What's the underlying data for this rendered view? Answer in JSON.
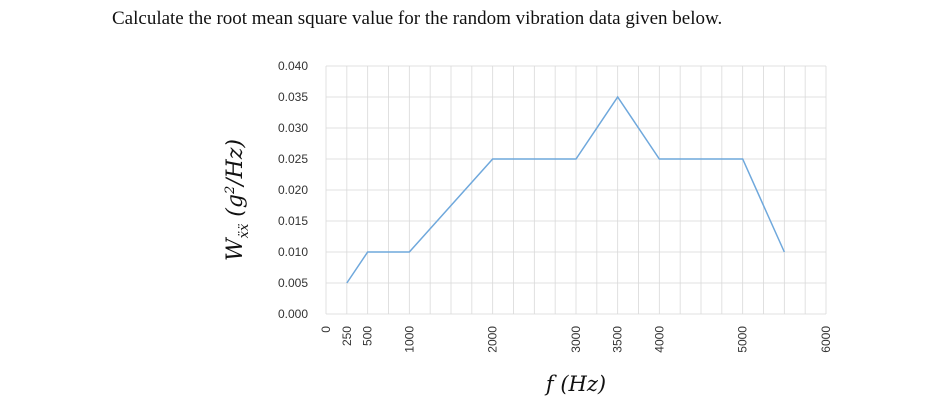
{
  "question": "Calculate the root mean square value for the random vibration data given below.",
  "chart_data": {
    "type": "line",
    "x": [
      250,
      500,
      1000,
      2000,
      3000,
      3500,
      4000,
      5000,
      5500
    ],
    "series": [
      {
        "values": [
          0.005,
          0.01,
          0.01,
          0.025,
          0.025,
          0.035,
          0.025,
          0.025,
          0.01
        ]
      }
    ],
    "xlabel": "f (Hz)",
    "ylabel": "W_ẍẍ (g²/Hz)",
    "xlim": [
      0,
      6000
    ],
    "ylim": [
      0,
      0.04
    ],
    "x_ticks": [
      "0",
      "250",
      "500",
      "1000",
      "2000",
      "3000",
      "3500",
      "4000",
      "5000",
      "6000"
    ],
    "x_tick_values": [
      0,
      250,
      500,
      1000,
      2000,
      3000,
      3500,
      4000,
      5000,
      6000
    ],
    "y_ticks": [
      "0.000",
      "0.005",
      "0.010",
      "0.015",
      "0.020",
      "0.025",
      "0.030",
      "0.035",
      "0.040"
    ],
    "y_tick_values": [
      0,
      0.005,
      0.01,
      0.015,
      0.02,
      0.025,
      0.03,
      0.035,
      0.04
    ],
    "grid": true,
    "line_color": "#6fa8dc",
    "grid_color": "#d9d9d9"
  }
}
